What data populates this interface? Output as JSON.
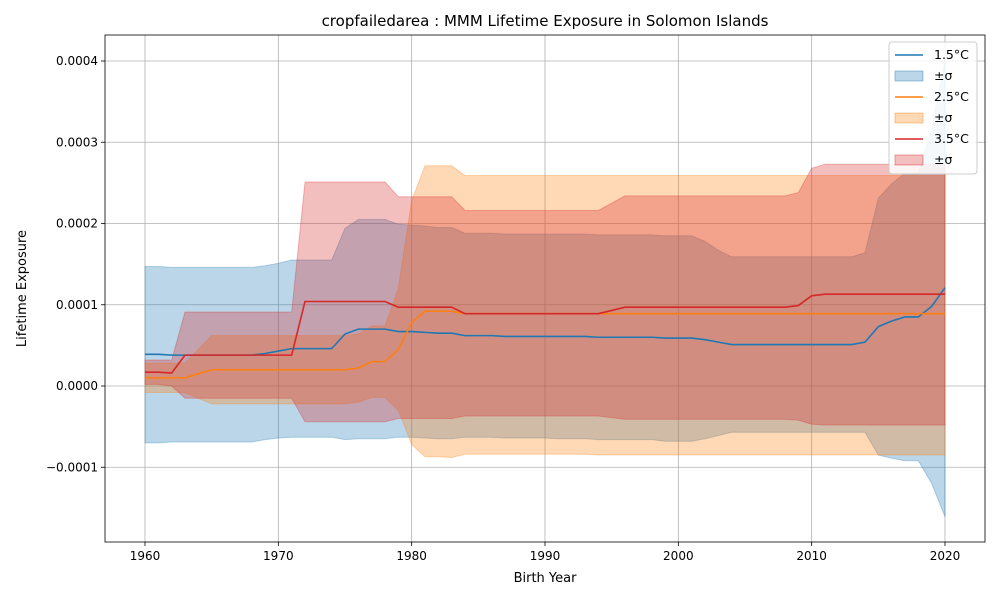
{
  "chart_data": {
    "type": "line",
    "title": "cropfailedarea : MMM Lifetime Exposure in Solomon Islands",
    "xlabel": "Birth Year",
    "ylabel": "Lifetime Exposure",
    "xlim": [
      1957,
      2023
    ],
    "ylim": [
      -0.000192,
      0.000432
    ],
    "grid": true,
    "legend_position": "top-right",
    "x_ticks": [
      1960,
      1970,
      1980,
      1990,
      2000,
      2010,
      2020
    ],
    "x_tick_labels": [
      "1960",
      "1970",
      "1980",
      "1990",
      "2000",
      "2010",
      "2020"
    ],
    "y_ticks": [
      -0.0001,
      0.0,
      0.0001,
      0.0002,
      0.0003,
      0.0004
    ],
    "y_tick_labels": [
      "−0.0001",
      "0.0000",
      "0.0001",
      "0.0002",
      "0.0003",
      "0.0004"
    ],
    "x": [
      1960,
      1961,
      1962,
      1963,
      1964,
      1965,
      1966,
      1967,
      1968,
      1969,
      1970,
      1971,
      1972,
      1973,
      1974,
      1975,
      1976,
      1977,
      1978,
      1979,
      1980,
      1981,
      1982,
      1983,
      1984,
      1985,
      1986,
      1987,
      1988,
      1989,
      1990,
      1991,
      1992,
      1993,
      1994,
      1995,
      1996,
      1997,
      1998,
      1999,
      2000,
      2001,
      2002,
      2003,
      2004,
      2005,
      2006,
      2007,
      2008,
      2009,
      2010,
      2011,
      2012,
      2013,
      2014,
      2015,
      2016,
      2017,
      2018,
      2019,
      2020
    ],
    "series": [
      {
        "name": "1.5°C",
        "band_name": "±σ",
        "color": "#1f77b4",
        "values": [
          3.9e-05,
          3.9e-05,
          3.8e-05,
          3.8e-05,
          3.8e-05,
          3.8e-05,
          3.8e-05,
          3.8e-05,
          3.8e-05,
          4e-05,
          4.3e-05,
          4.6e-05,
          4.6e-05,
          4.6e-05,
          4.6e-05,
          6.4e-05,
          7e-05,
          7e-05,
          7e-05,
          6.7e-05,
          6.7e-05,
          6.6e-05,
          6.5e-05,
          6.5e-05,
          6.2e-05,
          6.2e-05,
          6.2e-05,
          6.1e-05,
          6.1e-05,
          6.1e-05,
          6.1e-05,
          6.1e-05,
          6.1e-05,
          6.1e-05,
          6e-05,
          6e-05,
          6e-05,
          6e-05,
          6e-05,
          5.9e-05,
          5.9e-05,
          5.9e-05,
          5.7e-05,
          5.4e-05,
          5.1e-05,
          5.1e-05,
          5.1e-05,
          5.1e-05,
          5.1e-05,
          5.1e-05,
          5.1e-05,
          5.1e-05,
          5.1e-05,
          5.1e-05,
          5.4e-05,
          7.3e-05,
          8e-05,
          8.5e-05,
          8.5e-05,
          9.8e-05,
          0.000121
        ],
        "lower": [
          -7e-05,
          -7e-05,
          -6.9e-05,
          -6.9e-05,
          -6.9e-05,
          -6.9e-05,
          -6.9e-05,
          -6.9e-05,
          -6.9e-05,
          -6.6e-05,
          -6.4e-05,
          -6.3e-05,
          -6.3e-05,
          -6.3e-05,
          -6.3e-05,
          -6.6e-05,
          -6.5e-05,
          -6.5e-05,
          -6.5e-05,
          -6.3e-05,
          -6.3e-05,
          -6.4e-05,
          -6.5e-05,
          -6.5e-05,
          -6.3e-05,
          -6.3e-05,
          -6.3e-05,
          -6.4e-05,
          -6.4e-05,
          -6.4e-05,
          -6.4e-05,
          -6.5e-05,
          -6.5e-05,
          -6.5e-05,
          -6.6e-05,
          -6.6e-05,
          -6.6e-05,
          -6.6e-05,
          -6.6e-05,
          -6.8e-05,
          -6.8e-05,
          -6.8e-05,
          -6.5e-05,
          -6.1e-05,
          -5.7e-05,
          -5.7e-05,
          -5.7e-05,
          -5.7e-05,
          -5.7e-05,
          -5.7e-05,
          -5.7e-05,
          -5.7e-05,
          -5.7e-05,
          -5.7e-05,
          -5.7e-05,
          -8.5e-05,
          -8.9e-05,
          -9.2e-05,
          -9.2e-05,
          -0.00012,
          -0.000161
        ],
        "upper": [
          0.000147,
          0.000147,
          0.000146,
          0.000146,
          0.000146,
          0.000146,
          0.000146,
          0.000146,
          0.000146,
          0.000148,
          0.000151,
          0.000155,
          0.000155,
          0.000155,
          0.000155,
          0.000194,
          0.000205,
          0.000205,
          0.000205,
          0.000199,
          0.000198,
          0.000197,
          0.000195,
          0.000195,
          0.000188,
          0.000188,
          0.000188,
          0.000187,
          0.000187,
          0.000187,
          0.000187,
          0.000187,
          0.000187,
          0.000187,
          0.000186,
          0.000186,
          0.000186,
          0.000186,
          0.000186,
          0.000185,
          0.000185,
          0.000185,
          0.000178,
          0.000167,
          0.000159,
          0.000159,
          0.000159,
          0.000159,
          0.000159,
          0.000159,
          0.000159,
          0.000159,
          0.000159,
          0.000159,
          0.000164,
          0.000231,
          0.000249,
          0.000262,
          0.000262,
          0.000316,
          0.000402
        ]
      },
      {
        "name": "2.5°C",
        "band_name": "±σ",
        "color": "#ff7f0e",
        "values": [
          1e-05,
          1e-05,
          1e-05,
          1e-05,
          1.5e-05,
          2e-05,
          2e-05,
          2e-05,
          2e-05,
          2e-05,
          2e-05,
          2e-05,
          2e-05,
          2e-05,
          2e-05,
          2e-05,
          2.2e-05,
          3e-05,
          3e-05,
          4.5e-05,
          7.8e-05,
          9.2e-05,
          9.2e-05,
          9.2e-05,
          8.9e-05,
          8.9e-05,
          8.9e-05,
          8.9e-05,
          8.9e-05,
          8.9e-05,
          8.9e-05,
          8.9e-05,
          8.9e-05,
          8.9e-05,
          8.9e-05,
          8.9e-05,
          8.9e-05,
          8.9e-05,
          8.9e-05,
          8.9e-05,
          8.9e-05,
          8.9e-05,
          8.9e-05,
          8.9e-05,
          8.9e-05,
          8.9e-05,
          8.9e-05,
          8.9e-05,
          8.9e-05,
          8.9e-05,
          8.9e-05,
          8.9e-05,
          8.9e-05,
          8.9e-05,
          8.9e-05,
          8.9e-05,
          8.9e-05,
          8.9e-05,
          8.9e-05,
          8.9e-05,
          8.9e-05
        ],
        "lower": [
          -8e-06,
          -8e-06,
          -8e-06,
          -8e-06,
          -1.5e-05,
          -2.2e-05,
          -2.2e-05,
          -2.2e-05,
          -2.2e-05,
          -2.2e-05,
          -2.2e-05,
          -2.2e-05,
          -2.2e-05,
          -2.2e-05,
          -2.2e-05,
          -2.2e-05,
          -2e-05,
          -1.4e-05,
          -1.4e-05,
          -3e-05,
          -7.2e-05,
          -8.7e-05,
          -8.7e-05,
          -8.8e-05,
          -8.4e-05,
          -8.4e-05,
          -8.4e-05,
          -8.4e-05,
          -8.4e-05,
          -8.4e-05,
          -8.4e-05,
          -8.4e-05,
          -8.4e-05,
          -8.4e-05,
          -8.5e-05,
          -8.5e-05,
          -8.5e-05,
          -8.5e-05,
          -8.5e-05,
          -8.5e-05,
          -8.5e-05,
          -8.5e-05,
          -8.5e-05,
          -8.5e-05,
          -8.5e-05,
          -8.5e-05,
          -8.5e-05,
          -8.5e-05,
          -8.5e-05,
          -8.5e-05,
          -8.5e-05,
          -8.5e-05,
          -8.5e-05,
          -8.5e-05,
          -8.5e-05,
          -8.5e-05,
          -8.5e-05,
          -8.5e-05,
          -8.5e-05,
          -8.5e-05,
          -8.5e-05
        ],
        "upper": [
          2.8e-05,
          2.8e-05,
          2.8e-05,
          2.8e-05,
          4.5e-05,
          6.2e-05,
          6.2e-05,
          6.2e-05,
          6.2e-05,
          6.2e-05,
          6.2e-05,
          6.2e-05,
          6.2e-05,
          6.2e-05,
          6.2e-05,
          6.2e-05,
          6.4e-05,
          7.4e-05,
          7.4e-05,
          0.00012,
          0.000228,
          0.000271,
          0.000271,
          0.000271,
          0.000259,
          0.000259,
          0.000259,
          0.000259,
          0.000259,
          0.000259,
          0.000259,
          0.000259,
          0.000259,
          0.000259,
          0.000259,
          0.000259,
          0.000259,
          0.000259,
          0.000259,
          0.000259,
          0.000259,
          0.000259,
          0.000259,
          0.000259,
          0.000259,
          0.000259,
          0.000259,
          0.000259,
          0.000259,
          0.000259,
          0.000259,
          0.000259,
          0.000259,
          0.000259,
          0.000259,
          0.000259,
          0.000259,
          0.000259,
          0.000259,
          0.000259,
          0.000259
        ]
      },
      {
        "name": "3.5°C",
        "band_name": "±σ",
        "color": "#d62728",
        "values": [
          1.7e-05,
          1.7e-05,
          1.6e-05,
          3.8e-05,
          3.8e-05,
          3.8e-05,
          3.8e-05,
          3.8e-05,
          3.8e-05,
          3.8e-05,
          3.8e-05,
          3.8e-05,
          0.000104,
          0.000104,
          0.000104,
          0.000104,
          0.000104,
          0.000104,
          0.000104,
          9.7e-05,
          9.7e-05,
          9.7e-05,
          9.7e-05,
          9.7e-05,
          8.9e-05,
          8.9e-05,
          8.9e-05,
          8.9e-05,
          8.9e-05,
          8.9e-05,
          8.9e-05,
          8.9e-05,
          8.9e-05,
          8.9e-05,
          8.9e-05,
          9.3e-05,
          9.7e-05,
          9.7e-05,
          9.7e-05,
          9.7e-05,
          9.7e-05,
          9.7e-05,
          9.7e-05,
          9.7e-05,
          9.7e-05,
          9.7e-05,
          9.7e-05,
          9.7e-05,
          9.7e-05,
          9.9e-05,
          0.000111,
          0.000113,
          0.000113,
          0.000113,
          0.000113,
          0.000113,
          0.000113,
          0.000113,
          0.000113,
          0.000113,
          0.000113
        ],
        "lower": [
          2e-06,
          2e-06,
          0.0,
          -1.5e-05,
          -1.5e-05,
          -1.5e-05,
          -1.5e-05,
          -1.5e-05,
          -1.5e-05,
          -1.5e-05,
          -1.5e-05,
          -1.5e-05,
          -4.4e-05,
          -4.4e-05,
          -4.4e-05,
          -4.4e-05,
          -4.4e-05,
          -4.4e-05,
          -4.4e-05,
          -4e-05,
          -4e-05,
          -4e-05,
          -4e-05,
          -4e-05,
          -3.7e-05,
          -3.7e-05,
          -3.7e-05,
          -3.7e-05,
          -3.7e-05,
          -3.7e-05,
          -3.7e-05,
          -3.7e-05,
          -3.7e-05,
          -3.7e-05,
          -3.7e-05,
          -3.9e-05,
          -4.1e-05,
          -4.1e-05,
          -4.1e-05,
          -4.1e-05,
          -4.1e-05,
          -4.1e-05,
          -4.1e-05,
          -4.1e-05,
          -4.1e-05,
          -4.1e-05,
          -4.1e-05,
          -4.1e-05,
          -4.1e-05,
          -4.2e-05,
          -4.7e-05,
          -4.8e-05,
          -4.8e-05,
          -4.8e-05,
          -4.8e-05,
          -4.8e-05,
          -4.8e-05,
          -4.8e-05,
          -4.8e-05,
          -4.8e-05,
          -4.8e-05
        ],
        "upper": [
          3.2e-05,
          3.2e-05,
          3.2e-05,
          9.1e-05,
          9.1e-05,
          9.1e-05,
          9.1e-05,
          9.1e-05,
          9.1e-05,
          9.1e-05,
          9.1e-05,
          9.1e-05,
          0.000251,
          0.000251,
          0.000251,
          0.000251,
          0.000251,
          0.000251,
          0.000251,
          0.000233,
          0.000233,
          0.000233,
          0.000233,
          0.000233,
          0.000216,
          0.000216,
          0.000216,
          0.000216,
          0.000216,
          0.000216,
          0.000216,
          0.000216,
          0.000216,
          0.000216,
          0.000216,
          0.000225,
          0.000234,
          0.000234,
          0.000234,
          0.000234,
          0.000234,
          0.000234,
          0.000234,
          0.000234,
          0.000234,
          0.000234,
          0.000234,
          0.000234,
          0.000234,
          0.000238,
          0.000268,
          0.000273,
          0.000273,
          0.000273,
          0.000273,
          0.000273,
          0.000273,
          0.000273,
          0.000273,
          0.000273,
          0.000273
        ]
      }
    ]
  }
}
